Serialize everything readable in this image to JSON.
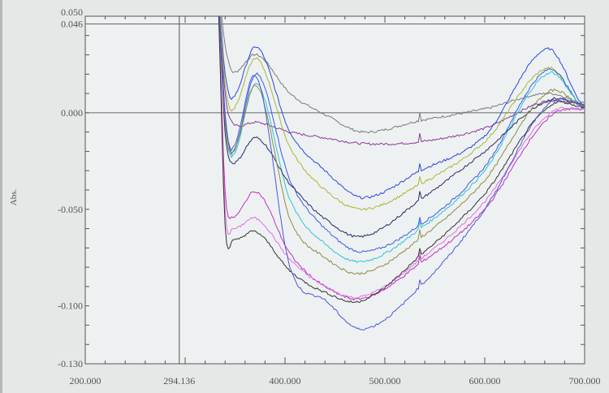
{
  "chart_data": {
    "type": "line",
    "title": "",
    "xlabel": "",
    "ylabel": "Abs.",
    "xlim": [
      200,
      700
    ],
    "ylim": [
      -0.13,
      0.05
    ],
    "grid": false,
    "legend": "none",
    "cursor_x_label": "294.136",
    "cursor_x": 294.136,
    "reference_lines_y": [
      0.046,
      0.0
    ],
    "x_ticks": [
      {
        "value": 200,
        "label": "200.000"
      },
      {
        "value": 294.136,
        "label": "294.136"
      },
      {
        "value": 400,
        "label": "400.000"
      },
      {
        "value": 500,
        "label": "500.000"
      },
      {
        "value": 600,
        "label": "600.000"
      },
      {
        "value": 700,
        "label": "700.000"
      }
    ],
    "y_ticks": [
      {
        "value": 0.05,
        "label": "0.050"
      },
      {
        "value": 0.046,
        "label": "0.046"
      },
      {
        "value": 0.0,
        "label": "0.000"
      },
      {
        "value": -0.05,
        "label": "-0.050"
      },
      {
        "value": -0.1,
        "label": "-0.100"
      },
      {
        "value": -0.13,
        "label": "-0.130"
      }
    ],
    "x": [
      332,
      340,
      348,
      372,
      405,
      440,
      478,
      535,
      600,
      662,
      700
    ],
    "series": [
      {
        "name": "gray",
        "color": "#7a7a7a",
        "values": [
          0.07,
          0.035,
          0.021,
          0.03,
          0.01,
          -0.001,
          -0.01,
          -0.004,
          0.002,
          0.01,
          0.005
        ]
      },
      {
        "name": "purple",
        "color": "#8a3a9a",
        "values": [
          0.07,
          0.01,
          -0.006,
          -0.005,
          -0.01,
          -0.013,
          -0.016,
          -0.015,
          -0.008,
          0.006,
          0.004
        ]
      },
      {
        "name": "blue",
        "color": "#2a46e0",
        "values": [
          0.07,
          0.02,
          0.008,
          0.034,
          -0.01,
          -0.03,
          -0.044,
          -0.03,
          -0.012,
          0.033,
          0.003
        ]
      },
      {
        "name": "yellow-green",
        "color": "#a6b832",
        "values": [
          0.07,
          0.015,
          0.002,
          0.028,
          -0.018,
          -0.04,
          -0.05,
          -0.037,
          -0.015,
          0.023,
          0.002
        ]
      },
      {
        "name": "blue-2",
        "color": "#3a5ae8",
        "values": [
          0.07,
          0.0,
          -0.02,
          0.02,
          -0.035,
          -0.06,
          -0.072,
          -0.058,
          -0.028,
          0.022,
          0.002
        ]
      },
      {
        "name": "cyan",
        "color": "#2cc4d8",
        "values": [
          0.07,
          -0.005,
          -0.022,
          0.015,
          -0.045,
          -0.068,
          -0.077,
          -0.06,
          -0.03,
          0.02,
          0.002
        ]
      },
      {
        "name": "navy",
        "color": "#2a2a60",
        "values": [
          0.07,
          -0.01,
          -0.026,
          -0.013,
          -0.037,
          -0.055,
          -0.064,
          -0.045,
          -0.02,
          0.006,
          0.004
        ]
      },
      {
        "name": "olive",
        "color": "#8c8c3c",
        "values": [
          0.07,
          -0.005,
          -0.02,
          0.014,
          -0.055,
          -0.075,
          -0.083,
          -0.065,
          -0.035,
          0.01,
          0.003
        ]
      },
      {
        "name": "magenta",
        "color": "#c030c0",
        "values": [
          0.07,
          -0.04,
          -0.054,
          -0.041,
          -0.073,
          -0.09,
          -0.096,
          -0.078,
          -0.05,
          -0.004,
          0.002
        ]
      },
      {
        "name": "pink",
        "color": "#e070e0",
        "values": [
          0.07,
          -0.05,
          -0.06,
          -0.055,
          -0.076,
          -0.09,
          -0.095,
          -0.076,
          -0.046,
          -0.002,
          0.002
        ]
      },
      {
        "name": "black",
        "color": "#333333",
        "values": [
          0.07,
          -0.058,
          -0.066,
          -0.062,
          -0.082,
          -0.093,
          -0.097,
          -0.074,
          -0.042,
          0.002,
          0.003
        ]
      },
      {
        "name": "blue-low",
        "color": "#4a58d8",
        "values": [
          0.07,
          -0.002,
          -0.018,
          0.018,
          -0.08,
          -0.097,
          -0.112,
          -0.09,
          -0.05,
          0.003,
          0.004
        ]
      }
    ]
  }
}
